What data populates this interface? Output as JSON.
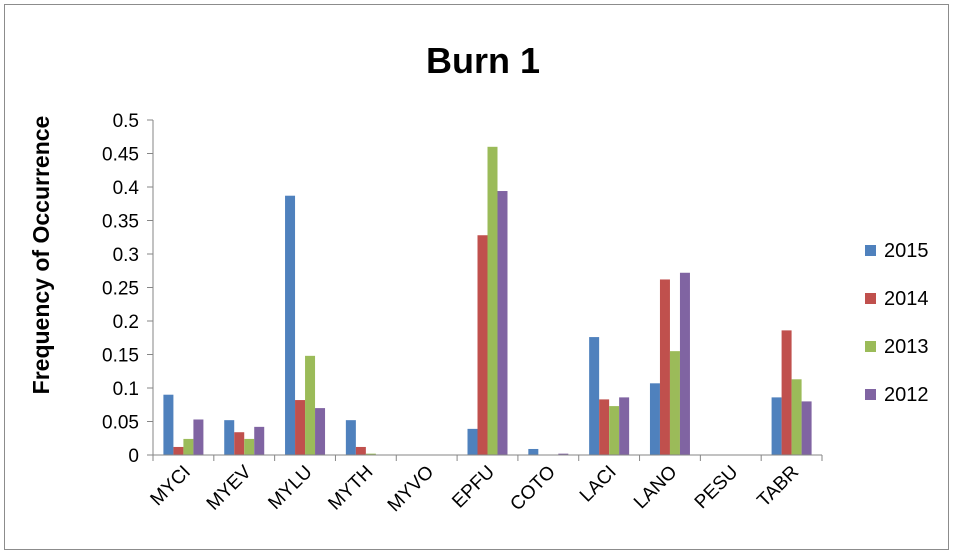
{
  "chart_data": {
    "type": "bar",
    "title": "Burn 1",
    "xlabel": "",
    "ylabel": "Frequency of Occurrence",
    "ylim": [
      0,
      0.5
    ],
    "yticks": [
      "0",
      "0.05",
      "0.1",
      "0.15",
      "0.2",
      "0.25",
      "0.3",
      "0.35",
      "0.4",
      "0.45",
      "0.5"
    ],
    "grid": false,
    "legend_position": "right",
    "categories": [
      "MYCI",
      "MYEV",
      "MYLU",
      "MYTH",
      "MYVO",
      "EPFU",
      "COTO",
      "LACI",
      "LANO",
      "PESU",
      "TABR"
    ],
    "series": [
      {
        "name": "2015",
        "color": "#4f81bd",
        "values": [
          0.09,
          0.052,
          0.387,
          0.052,
          0,
          0.039,
          0.009,
          0.176,
          0.107,
          0,
          0.086
        ]
      },
      {
        "name": "2014",
        "color": "#c0504d",
        "values": [
          0.012,
          0.034,
          0.082,
          0.012,
          0,
          0.328,
          0,
          0.083,
          0.262,
          0,
          0.186
        ]
      },
      {
        "name": "2013",
        "color": "#9bbb59",
        "values": [
          0.024,
          0.024,
          0.148,
          0.002,
          0,
          0.46,
          0,
          0.073,
          0.155,
          0,
          0.113
        ]
      },
      {
        "name": "2012",
        "color": "#8064a2",
        "values": [
          0.053,
          0.042,
          0.07,
          0,
          0,
          0.394,
          0.002,
          0.086,
          0.272,
          0,
          0.08
        ]
      }
    ]
  }
}
